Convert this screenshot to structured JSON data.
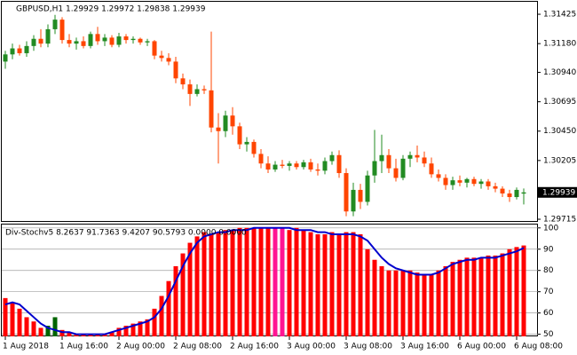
{
  "chart_data": [
    {
      "type": "candlestick",
      "title": "GBPUSD,H1 1.29929 1.29972 1.29838 1.29939",
      "open": [
        1.3103,
        1.3109,
        1.3114,
        1.311,
        1.3116,
        1.3122,
        1.3118,
        1.313,
        1.3138,
        1.3121,
        1.3118,
        1.312,
        1.3116,
        1.3126,
        1.312,
        1.3123,
        1.3117,
        1.3124,
        1.3121,
        1.3122,
        1.3119,
        1.312,
        1.3108,
        1.3106,
        1.3103,
        1.3089,
        1.3084,
        1.3076,
        1.308,
        1.3079,
        1.3048,
        1.3045,
        1.3058,
        1.3049,
        1.3034,
        1.3036,
        1.3026,
        1.3018,
        1.3013,
        1.3017,
        1.3016,
        1.3018,
        1.3015,
        1.3019,
        1.3013,
        1.3012,
        1.302,
        1.3025,
        1.301,
        1.2978,
        1.2996,
        1.2986,
        1.3008,
        1.302,
        1.3025,
        1.3014,
        1.3006,
        1.3022,
        1.3025,
        1.3023,
        1.3018,
        1.3009,
        1.3006,
        1.3,
        1.3004,
        1.3002,
        1.3005,
        1.3001,
        1.3003,
        1.2999,
        1.2997,
        1.2993,
        1.299,
        1.29929
      ],
      "high": [
        1.3112,
        1.3118,
        1.3117,
        1.312,
        1.3125,
        1.313,
        1.3134,
        1.3142,
        1.314,
        1.3126,
        1.3123,
        1.3124,
        1.3128,
        1.3132,
        1.3126,
        1.3125,
        1.3127,
        1.3126,
        1.3124,
        1.3123,
        1.3122,
        1.3121,
        1.3112,
        1.311,
        1.3107,
        1.3093,
        1.3088,
        1.3084,
        1.3083,
        1.3128,
        1.306,
        1.3062,
        1.3065,
        1.3052,
        1.304,
        1.3038,
        1.303,
        1.3024,
        1.302,
        1.3021,
        1.302,
        1.302,
        1.3021,
        1.3022,
        1.3018,
        1.3023,
        1.3028,
        1.3029,
        1.3014,
        1.3002,
        1.3001,
        1.3012,
        1.3046,
        1.3042,
        1.303,
        1.3022,
        1.3025,
        1.3028,
        1.3033,
        1.3028,
        1.3023,
        1.3013,
        1.3009,
        1.3007,
        1.3008,
        1.3006,
        1.3007,
        1.3005,
        1.3005,
        1.3002,
        1.2999,
        1.2996,
        1.2998,
        1.29972
      ],
      "low": [
        1.3097,
        1.3105,
        1.3108,
        1.3107,
        1.3112,
        1.3115,
        1.3115,
        1.3126,
        1.3118,
        1.3115,
        1.3113,
        1.3114,
        1.3114,
        1.3117,
        1.3116,
        1.3115,
        1.3115,
        1.3118,
        1.3118,
        1.3117,
        1.3116,
        1.3105,
        1.3103,
        1.31,
        1.3085,
        1.308,
        1.3066,
        1.3074,
        1.3076,
        1.3044,
        1.3018,
        1.304,
        1.3042,
        1.303,
        1.3028,
        1.3023,
        1.3014,
        1.301,
        1.3011,
        1.3014,
        1.3012,
        1.3013,
        1.3013,
        1.3011,
        1.3008,
        1.3009,
        1.3017,
        1.3006,
        1.2974,
        1.2974,
        1.298,
        1.2983,
        1.3002,
        1.301,
        1.301,
        1.3003,
        1.3004,
        1.3015,
        1.3019,
        1.3015,
        1.3006,
        1.3003,
        1.2996,
        1.2996,
        1.2999,
        1.2998,
        1.2999,
        1.2997,
        1.2996,
        1.2994,
        1.299,
        1.2986,
        1.2988,
        1.29838
      ],
      "close": [
        1.3109,
        1.3114,
        1.311,
        1.3116,
        1.3122,
        1.3118,
        1.313,
        1.3138,
        1.3121,
        1.3118,
        1.312,
        1.3116,
        1.3126,
        1.312,
        1.3123,
        1.3117,
        1.3124,
        1.3121,
        1.3122,
        1.3119,
        1.312,
        1.3108,
        1.3106,
        1.3103,
        1.3089,
        1.3084,
        1.3076,
        1.308,
        1.3079,
        1.3048,
        1.3045,
        1.3058,
        1.3049,
        1.3034,
        1.3036,
        1.3026,
        1.3018,
        1.3013,
        1.3017,
        1.3016,
        1.3018,
        1.3015,
        1.3019,
        1.3013,
        1.3012,
        1.302,
        1.3025,
        1.301,
        1.2978,
        1.2996,
        1.2986,
        1.3008,
        1.302,
        1.3025,
        1.3014,
        1.3006,
        1.3022,
        1.3025,
        1.3023,
        1.3018,
        1.3009,
        1.3006,
        1.3,
        1.3004,
        1.3002,
        1.3005,
        1.3001,
        1.3003,
        1.2999,
        1.2997,
        1.2993,
        1.299,
        1.2996,
        1.29939
      ],
      "up_color": "#228b22",
      "down_color": "#ff4500",
      "ylim": [
        1.29693,
        1.31529
      ],
      "yticks": [
        1.31425,
        {
          "value": 1.3118,
          "label": "1.31180"
        },
        {
          "value": 1.3094,
          "label": "1.30940"
        },
        1.30695,
        {
          "value": 1.3045,
          "label": "1.30450"
        },
        1.30205,
        1.29715
      ]
    },
    {
      "type": "bar",
      "title": "Div-Stochv5 8.2637 91.7363 9.4207 90.5793 0.0000 0.0000",
      "x": [
        "1 Aug 2018",
        null,
        null,
        null,
        null,
        null,
        null,
        null,
        "1 Aug 16:00",
        null,
        null,
        null,
        null,
        null,
        null,
        null,
        "2 Aug 00:00",
        null,
        null,
        null,
        null,
        null,
        null,
        null,
        "2 Aug 08:00",
        null,
        null,
        null,
        null,
        null,
        null,
        null,
        "2 Aug 16:00",
        null,
        null,
        null,
        null,
        null,
        null,
        null,
        "3 Aug 00:00",
        null,
        null,
        null,
        null,
        null,
        null,
        null,
        "3 Aug 08:00",
        null,
        null,
        null,
        null,
        null,
        null,
        null,
        "3 Aug 16:00",
        null,
        null,
        null,
        null,
        null,
        null,
        null,
        "6 Aug 00:00",
        null,
        null,
        null,
        null,
        null,
        null,
        null,
        "6 Aug 08:00",
        null
      ],
      "values": [
        67,
        65,
        62,
        58,
        56,
        53,
        54,
        58,
        52,
        51,
        50,
        50,
        50,
        50,
        50,
        51,
        53,
        54,
        55,
        56,
        57,
        62,
        68,
        75,
        82,
        88,
        93,
        96,
        98,
        97,
        98,
        99,
        99,
        100,
        100,
        100,
        100,
        100,
        100,
        100,
        99,
        100,
        99,
        98,
        97,
        97,
        98,
        97,
        98,
        98,
        97,
        90,
        85,
        82,
        80,
        80,
        80,
        80,
        79,
        78,
        78,
        80,
        82,
        84,
        85,
        86,
        86,
        86,
        87,
        87,
        88,
        90,
        91,
        91.7363
      ],
      "colors": [
        "#ff0000",
        "#ff0000",
        "#ff0000",
        "#ff0000",
        "#ff0000",
        "#ff0000",
        "#006400",
        "#006400",
        "#ff0000",
        "#ff0000",
        "#ff0000",
        "#ff0000",
        "#ff0000",
        "#ff0000",
        "#ff0000",
        "#ff0000",
        "#ff0000",
        "#ff0000",
        "#ff0000",
        "#ff0000",
        "#ff0000",
        "#ff0000",
        "#ff0000",
        "#ff0000",
        "#ff0000",
        "#ff0000",
        "#ff0000",
        "#ff0000",
        "#ff0000",
        "#ff0000",
        "#ff0000",
        "#ff0000",
        "#ff0000",
        "#ff0000",
        "#ff0000",
        "#ff0000",
        "#ff0000",
        "#ff0000",
        "#ff1493",
        "#ff1493",
        "#ff0000",
        "#ff0000",
        "#ff0000",
        "#ff0000",
        "#ff0000",
        "#ff0000",
        "#ff0000",
        "#ff0000",
        "#ff0000",
        "#ff0000",
        "#ff0000",
        "#ff0000",
        "#ff0000",
        "#ff0000",
        "#ff0000",
        "#ff0000",
        "#ff0000",
        "#ff0000",
        "#ff0000",
        "#ff0000",
        "#ff0000",
        "#ff0000",
        "#ff0000",
        "#ff0000",
        "#ff0000",
        "#ff0000",
        "#ff0000",
        "#ff0000",
        "#ff0000",
        "#ff0000",
        "#ff0000",
        "#ff0000",
        "#ff0000",
        "#ff0000"
      ],
      "signal_values": [
        64,
        65,
        64,
        61,
        58,
        55,
        53,
        52,
        51,
        51,
        50,
        50,
        50,
        50,
        50,
        51,
        52,
        53,
        54,
        55,
        56,
        58,
        62,
        68,
        75,
        82,
        88,
        93,
        96,
        97,
        98,
        98,
        99,
        99,
        99,
        100,
        100,
        100,
        100,
        100,
        100,
        99,
        99,
        99,
        98,
        98,
        97,
        97,
        97,
        97,
        96,
        94,
        90,
        86,
        83,
        81,
        80,
        79,
        78,
        78,
        78,
        79,
        81,
        83,
        84,
        85,
        85,
        86,
        86,
        86,
        87,
        88,
        89,
        90.5793
      ],
      "signal_color": "#0000cd",
      "ylim": [
        49,
        102
      ],
      "yticks": [
        50,
        60,
        70,
        80,
        90,
        100
      ],
      "grid": true
    }
  ]
}
